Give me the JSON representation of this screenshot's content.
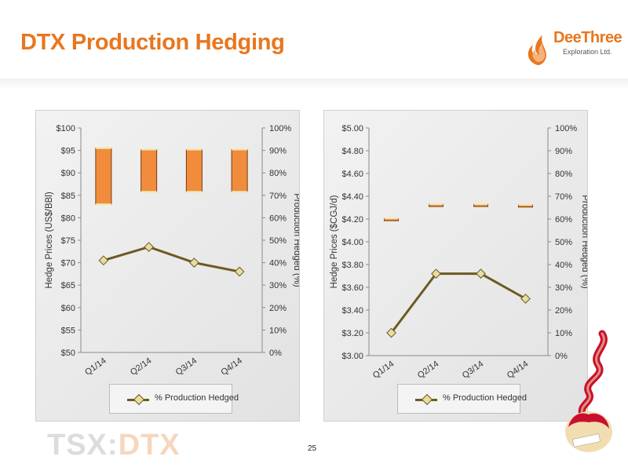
{
  "header": {
    "title": "DTX Production Hedging"
  },
  "logo": {
    "name": "DeeThree",
    "sub": "Exploration Ltd."
  },
  "footer": {
    "ticker_prefix": "TSX:",
    "ticker_symbol": "DTX",
    "page_number": "25"
  },
  "colors": {
    "accent": "#e8761f",
    "bar_fill": "#f08c3c",
    "line": "#6b5a22",
    "marker": "#e8dca0"
  },
  "chart_data": [
    {
      "type": "bar",
      "categories": [
        "Q1/14",
        "Q2/14",
        "Q3/14",
        "Q4/14"
      ],
      "ylabel": "Hedge Prices (US$/BBl)",
      "y2label": "Production Hedged (%)",
      "ylim": [
        50,
        100
      ],
      "y2lim": [
        0,
        1
      ],
      "yticks": [
        "$50",
        "$55",
        "$60",
        "$65",
        "$70",
        "$75",
        "$80",
        "$85",
        "$90",
        "$95",
        "$100"
      ],
      "y2ticks": [
        "0%",
        "10%",
        "20%",
        "30%",
        "40%",
        "50%",
        "60%",
        "70%",
        "80%",
        "90%",
        "100%"
      ],
      "series": [
        {
          "type": "floating-bar",
          "low": [
            83.0,
            85.8,
            85.8,
            85.8
          ],
          "high": [
            95.5,
            95.2,
            95.2,
            95.2
          ]
        },
        {
          "name": "% Production Hedged",
          "type": "line",
          "axis": "secondary",
          "values": [
            0.41,
            0.47,
            0.4,
            0.36
          ]
        }
      ],
      "legend": "bottom",
      "grid": false
    },
    {
      "type": "bar",
      "categories": [
        "Q1/14",
        "Q2/14",
        "Q3/14",
        "Q4/14"
      ],
      "ylabel": "Hedge Prices ($CGJ/d)",
      "y2label": "Production Hedged (%)",
      "ylim": [
        3.0,
        5.0
      ],
      "y2lim": [
        0,
        1
      ],
      "yticks": [
        "$3.00",
        "$3.20",
        "$3.40",
        "$3.60",
        "$3.80",
        "$4.00",
        "$4.20",
        "$4.40",
        "$4.60",
        "$4.80",
        "$5.00"
      ],
      "y2ticks": [
        "0%",
        "10%",
        "20%",
        "30%",
        "40%",
        "50%",
        "60%",
        "70%",
        "80%",
        "90%",
        "100%"
      ],
      "series": [
        {
          "type": "floating-bar",
          "low": [
            4.185,
            4.31,
            4.31,
            4.305
          ],
          "high": [
            4.205,
            4.33,
            4.33,
            4.325
          ]
        },
        {
          "name": "% Production Hedged",
          "type": "line",
          "axis": "secondary",
          "values": [
            0.1,
            0.36,
            0.36,
            0.25
          ]
        }
      ],
      "legend": "bottom",
      "grid": false
    }
  ]
}
